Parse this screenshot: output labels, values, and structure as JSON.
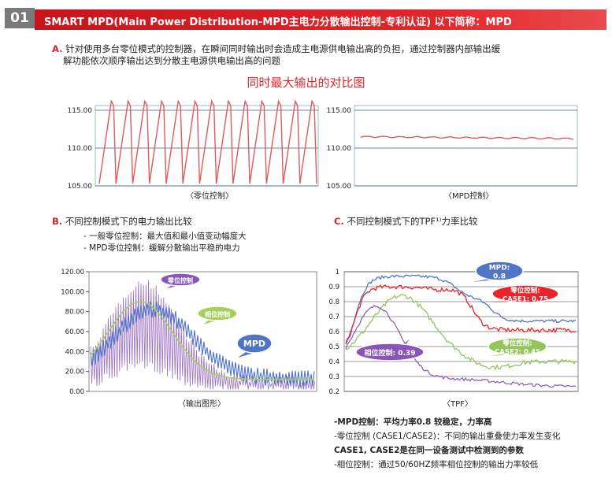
{
  "header": {
    "number": "01",
    "title": "SMART MPD(Main Power Distribution-MPD主电力分散输出控制-专利认证) 以下简称：MPD"
  },
  "section_a": {
    "marker": "A.",
    "line1": "针对使用多台零位模式的控制器，在瞬间同时输出时会造成主电源供电输出高的负担，通过控制器内部输出缓",
    "line2": "解功能依次顺序输出达到分散主电源供电输出高的问题"
  },
  "compare_title": "同时最大输出的对比图",
  "chart_left": {
    "caption": "〈零位控制〉",
    "yticks": [
      "115.00",
      "110.00",
      "105.00"
    ]
  },
  "chart_right": {
    "caption": "〈MPD控制〉",
    "yticks": [
      "115.00",
      "110.00",
      "105.00"
    ]
  },
  "section_b": {
    "marker": "B.",
    "title": "不同控制模式下的电力输出比较",
    "bullet1": "- 一般零位控制：最大值和最小值变动幅度大",
    "bullet2": "- MPD零位控制：缓解分散输出平稳的电力",
    "caption": "〈输出图形〉",
    "labels": {
      "zero": "零位控制",
      "phase": "相位控制",
      "mpd": "MPD"
    }
  },
  "section_c": {
    "marker": "C.",
    "title": "不同控制模式下的TPF¹⁾力率比较",
    "caption": "〈TPF〉",
    "labels": {
      "mpd1": "MPD:",
      "mpd2": "0.8",
      "zero1": "零位控制:",
      "zero2": "CASE1: 0.75",
      "zeroc2_1": "零位控制:",
      "zeroc2_2": "CASE2: 0.45",
      "phase": "相位控制: 0.39"
    }
  },
  "notes": {
    "n1": "-MPD控制：平均力率0.8 较稳定，力率高",
    "n2": "-零位控制  (CASE1/CASE2)：不同的输出重叠使力率发生变化",
    "n3": "  CASE1, CASE2是在同一设备测试中检测到的参数",
    "n4": "-相位控制：通过50/60HZ频率相位控制的输出力率较低"
  },
  "chart_data": [
    {
      "type": "line",
      "title": "",
      "xlabel": "",
      "ylabel": "",
      "ylim": [
        105,
        115
      ],
      "yticks": [
        "115.00",
        "110.00",
        "105.00"
      ],
      "series": [
        {
          "name": "零位控制",
          "pattern": "sawtooth",
          "min": 105.3,
          "max": 116.2,
          "cycles": 13
        }
      ],
      "color": "#e05a5a"
    },
    {
      "type": "line",
      "title": "",
      "xlabel": "",
      "ylabel": "",
      "ylim": [
        105,
        115
      ],
      "yticks": [
        "115.00",
        "110.00",
        "105.00"
      ],
      "series": [
        {
          "name": "MPD控制",
          "pattern": "flat",
          "value": 111.5
        }
      ],
      "color": "#e05a5a"
    },
    {
      "type": "line",
      "title": "",
      "xlabel": "",
      "ylabel": "",
      "ylim": [
        0,
        120
      ],
      "yticks": [
        "120.00",
        "100.00",
        "80.00",
        "60.00",
        "40.00",
        "20.00",
        "0.00"
      ],
      "series": [
        {
          "name": "零位控制",
          "peak": 113,
          "color": "#8a55b8"
        },
        {
          "name": "相位控制",
          "peak": 90,
          "color": "#a6cf5a"
        },
        {
          "name": "MPD",
          "peak": 82,
          "color": "#4f74c8"
        }
      ]
    },
    {
      "type": "line",
      "title": "",
      "xlabel": "",
      "ylabel": "",
      "ylim": [
        0.2,
        1.0
      ],
      "yticks": [
        "1",
        "0.9",
        "0.8",
        "0.7",
        "0.6",
        "0.5",
        "0.4",
        "0.3",
        "0.2"
      ],
      "series": [
        {
          "name": "MPD",
          "value": 0.8,
          "color": "#4f74c8"
        },
        {
          "name": "零位控制 CASE1",
          "value": 0.75,
          "color": "#e8242a"
        },
        {
          "name": "零位控制 CASE2",
          "value": 0.45,
          "color": "#94c45a"
        },
        {
          "name": "相位控制",
          "value": 0.39,
          "color": "#8a55b8"
        }
      ]
    }
  ]
}
